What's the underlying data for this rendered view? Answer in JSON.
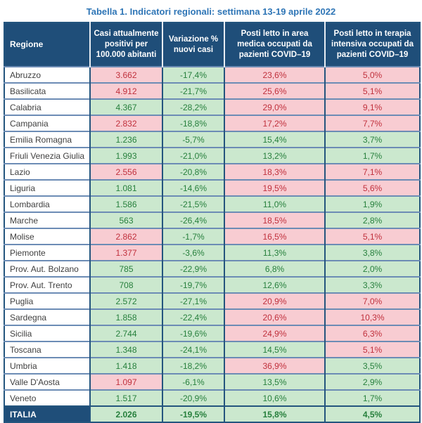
{
  "title": "Tabella 1. Indicatori regionali: settimana 13-19 aprile 2022",
  "colors": {
    "header_bg": "#1F4E79",
    "title_text": "#2E75B6",
    "worsening_fill": "#F8CCD2",
    "worsening_text": "#C0303C",
    "improving_fill": "#CBE8CE",
    "improving_text": "#267F3C"
  },
  "table": {
    "columns": [
      {
        "label": "Regione"
      },
      {
        "label": "Casi attualmente positivi per 100.000 abitanti"
      },
      {
        "label": "Variazione % nuovi casi"
      },
      {
        "label": "Posti letto in area medica occupati da pazienti COVID–19"
      },
      {
        "label": "Posti letto in terapia intensiva occupati da pazienti COVID–19"
      }
    ],
    "rows": [
      {
        "region": "Abruzzo",
        "cells": [
          {
            "value": "3.662",
            "flag": "red"
          },
          {
            "value": "-17,4%",
            "flag": "green"
          },
          {
            "value": "23,6%",
            "flag": "red"
          },
          {
            "value": "5,0%",
            "flag": "red"
          }
        ]
      },
      {
        "region": "Basilicata",
        "cells": [
          {
            "value": "4.912",
            "flag": "red"
          },
          {
            "value": "-21,7%",
            "flag": "green"
          },
          {
            "value": "25,6%",
            "flag": "red"
          },
          {
            "value": "5,1%",
            "flag": "red"
          }
        ]
      },
      {
        "region": "Calabria",
        "cells": [
          {
            "value": "4.367",
            "flag": "green"
          },
          {
            "value": "-28,2%",
            "flag": "green"
          },
          {
            "value": "29,0%",
            "flag": "red"
          },
          {
            "value": "9,1%",
            "flag": "red"
          }
        ]
      },
      {
        "region": "Campania",
        "cells": [
          {
            "value": "2.832",
            "flag": "red"
          },
          {
            "value": "-18,8%",
            "flag": "green"
          },
          {
            "value": "17,2%",
            "flag": "red"
          },
          {
            "value": "7,7%",
            "flag": "red"
          }
        ]
      },
      {
        "region": "Emilia Romagna",
        "cells": [
          {
            "value": "1.236",
            "flag": "green"
          },
          {
            "value": "-5,7%",
            "flag": "green"
          },
          {
            "value": "15,4%",
            "flag": "green"
          },
          {
            "value": "3,7%",
            "flag": "green"
          }
        ]
      },
      {
        "region": "Friuli Venezia Giulia",
        "cells": [
          {
            "value": "1.993",
            "flag": "green"
          },
          {
            "value": "-21,0%",
            "flag": "green"
          },
          {
            "value": "13,2%",
            "flag": "green"
          },
          {
            "value": "1,7%",
            "flag": "green"
          }
        ]
      },
      {
        "region": "Lazio",
        "cells": [
          {
            "value": "2.556",
            "flag": "red"
          },
          {
            "value": "-20,8%",
            "flag": "green"
          },
          {
            "value": "18,3%",
            "flag": "red"
          },
          {
            "value": "7,1%",
            "flag": "red"
          }
        ]
      },
      {
        "region": "Liguria",
        "cells": [
          {
            "value": "1.081",
            "flag": "green"
          },
          {
            "value": "-14,6%",
            "flag": "green"
          },
          {
            "value": "19,5%",
            "flag": "red"
          },
          {
            "value": "5,6%",
            "flag": "red"
          }
        ]
      },
      {
        "region": "Lombardia",
        "cells": [
          {
            "value": "1.586",
            "flag": "green"
          },
          {
            "value": "-21,5%",
            "flag": "green"
          },
          {
            "value": "11,0%",
            "flag": "green"
          },
          {
            "value": "1,9%",
            "flag": "green"
          }
        ]
      },
      {
        "region": "Marche",
        "cells": [
          {
            "value": "563",
            "flag": "green"
          },
          {
            "value": "-26,4%",
            "flag": "green"
          },
          {
            "value": "18,5%",
            "flag": "red"
          },
          {
            "value": "2,8%",
            "flag": "green"
          }
        ]
      },
      {
        "region": "Molise",
        "cells": [
          {
            "value": "2.862",
            "flag": "red"
          },
          {
            "value": "-1,7%",
            "flag": "green"
          },
          {
            "value": "16,5%",
            "flag": "red"
          },
          {
            "value": "5,1%",
            "flag": "red"
          }
        ]
      },
      {
        "region": "Piemonte",
        "cells": [
          {
            "value": "1.377",
            "flag": "red"
          },
          {
            "value": "-3,6%",
            "flag": "green"
          },
          {
            "value": "11,3%",
            "flag": "green"
          },
          {
            "value": "3,8%",
            "flag": "green"
          }
        ]
      },
      {
        "region": "Prov. Aut. Bolzano",
        "cells": [
          {
            "value": "785",
            "flag": "green"
          },
          {
            "value": "-22,9%",
            "flag": "green"
          },
          {
            "value": "6,8%",
            "flag": "green"
          },
          {
            "value": "2,0%",
            "flag": "green"
          }
        ]
      },
      {
        "region": "Prov. Aut. Trento",
        "cells": [
          {
            "value": "708",
            "flag": "green"
          },
          {
            "value": "-19,7%",
            "flag": "green"
          },
          {
            "value": "12,6%",
            "flag": "green"
          },
          {
            "value": "3,3%",
            "flag": "green"
          }
        ]
      },
      {
        "region": "Puglia",
        "cells": [
          {
            "value": "2.572",
            "flag": "green"
          },
          {
            "value": "-27,1%",
            "flag": "green"
          },
          {
            "value": "20,9%",
            "flag": "red"
          },
          {
            "value": "7,0%",
            "flag": "red"
          }
        ]
      },
      {
        "region": "Sardegna",
        "cells": [
          {
            "value": "1.858",
            "flag": "green"
          },
          {
            "value": "-22,4%",
            "flag": "green"
          },
          {
            "value": "20,6%",
            "flag": "red"
          },
          {
            "value": "10,3%",
            "flag": "red"
          }
        ]
      },
      {
        "region": "Sicilia",
        "cells": [
          {
            "value": "2.744",
            "flag": "green"
          },
          {
            "value": "-19,6%",
            "flag": "green"
          },
          {
            "value": "24,9%",
            "flag": "red"
          },
          {
            "value": "6,3%",
            "flag": "red"
          }
        ]
      },
      {
        "region": "Toscana",
        "cells": [
          {
            "value": "1.348",
            "flag": "green"
          },
          {
            "value": "-24,1%",
            "flag": "green"
          },
          {
            "value": "14,5%",
            "flag": "green"
          },
          {
            "value": "5,1%",
            "flag": "red"
          }
        ]
      },
      {
        "region": "Umbria",
        "cells": [
          {
            "value": "1.418",
            "flag": "green"
          },
          {
            "value": "-18,2%",
            "flag": "green"
          },
          {
            "value": "36,9%",
            "flag": "red"
          },
          {
            "value": "3,5%",
            "flag": "green"
          }
        ]
      },
      {
        "region": "Valle D'Aosta",
        "cells": [
          {
            "value": "1.097",
            "flag": "red"
          },
          {
            "value": "-6,1%",
            "flag": "green"
          },
          {
            "value": "13,5%",
            "flag": "green"
          },
          {
            "value": "2,9%",
            "flag": "green"
          }
        ]
      },
      {
        "region": "Veneto",
        "cells": [
          {
            "value": "1.517",
            "flag": "green"
          },
          {
            "value": "-20,9%",
            "flag": "green"
          },
          {
            "value": "10,6%",
            "flag": "green"
          },
          {
            "value": "1,7%",
            "flag": "green"
          }
        ]
      }
    ],
    "total": {
      "region": "ITALIA",
      "cells": [
        {
          "value": "2.026",
          "flag": "green"
        },
        {
          "value": "-19,5%",
          "flag": "green"
        },
        {
          "value": "15,8%",
          "flag": "green"
        },
        {
          "value": "4,5%",
          "flag": "green"
        }
      ]
    }
  }
}
